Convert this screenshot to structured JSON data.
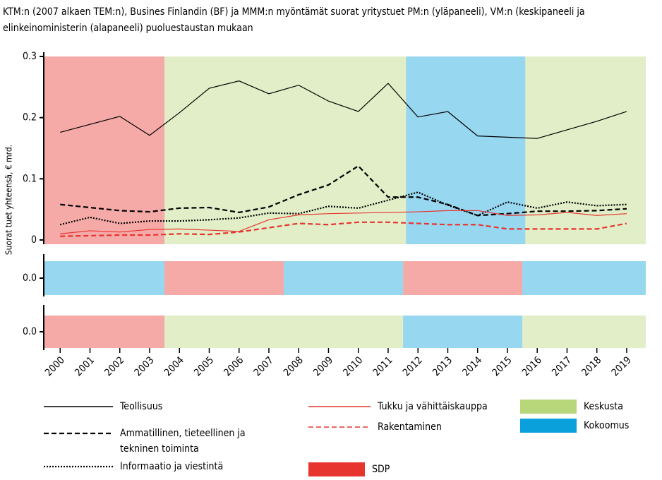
{
  "chart_data": {
    "type": "line",
    "title": "KTM:n (2007 alkaen TEM:n), Busines Finlandin (BF) ja MMM:n myöntämät suorat yritystuet PM:n (yläpaneeli), VM:n (keskipaneeli ja elinkeinoministerin (alapaneeli) puoluestaustan mukaan",
    "y_label": "Suorat tuet yhteensä, € mrd.",
    "x": [
      2000,
      2001,
      2002,
      2003,
      2004,
      2005,
      2006,
      2007,
      2008,
      2009,
      2010,
      2011,
      2012,
      2013,
      2014,
      2015,
      2016,
      2017,
      2018,
      2019
    ],
    "xlim": [
      1999.45,
      2019.64
    ],
    "ylim": [
      -0.007,
      0.3
    ],
    "yticks": [
      0,
      0.1,
      0.2,
      0.3
    ],
    "series": [
      {
        "name": "Teollisuus",
        "color": "#000000",
        "dash": "solid",
        "values": [
          0.176,
          0.189,
          0.202,
          0.171,
          0.208,
          0.248,
          0.26,
          0.239,
          0.253,
          0.227,
          0.21,
          0.256,
          0.201,
          0.21,
          0.17,
          0.168,
          0.166,
          0.18,
          0.194,
          0.21
        ]
      },
      {
        "name": "Ammatillinen, tieteellinen ja tekninen toiminta",
        "color": "#000000",
        "dash": "dashed",
        "values": [
          0.058,
          0.053,
          0.048,
          0.046,
          0.052,
          0.053,
          0.045,
          0.054,
          0.074,
          0.09,
          0.121,
          0.07,
          0.07,
          0.058,
          0.04,
          0.043,
          0.047,
          0.047,
          0.048,
          0.051
        ]
      },
      {
        "name": "Informaatio ja viestintä",
        "color": "#000000",
        "dash": "dotted",
        "values": [
          0.025,
          0.037,
          0.027,
          0.031,
          0.031,
          0.033,
          0.036,
          0.044,
          0.043,
          0.055,
          0.052,
          0.065,
          0.078,
          0.057,
          0.04,
          0.062,
          0.052,
          0.062,
          0.056,
          0.058
        ]
      },
      {
        "name": "Tukku ja vähittäiskauppa",
        "color": "#e8342f",
        "dash": "solid",
        "values": [
          0.01,
          0.015,
          0.013,
          0.017,
          0.018,
          0.016,
          0.014,
          0.033,
          0.041,
          0.043,
          0.044,
          0.045,
          0.046,
          0.048,
          0.048,
          0.04,
          0.041,
          0.045,
          0.04,
          0.043
        ]
      },
      {
        "name": "Rakentaminen",
        "color": "#e8342f",
        "dash": "dashed",
        "values": [
          0.006,
          0.007,
          0.008,
          0.008,
          0.01,
          0.009,
          0.013,
          0.02,
          0.027,
          0.025,
          0.029,
          0.029,
          0.027,
          0.025,
          0.025,
          0.018,
          0.018,
          0.018,
          0.018,
          0.027
        ]
      }
    ],
    "parties": [
      {
        "name": "Keskusta",
        "color": "#b8d77a"
      },
      {
        "name": "Kokoomus",
        "color": "#0aa0dc"
      },
      {
        "name": "SDP",
        "color": "#e8342f"
      }
    ],
    "periods": [
      {
        "party": "SDP",
        "start": 1999.45,
        "end": 2003.5
      },
      {
        "party": "Keskusta",
        "start": 2003.5,
        "end": 2011.6
      },
      {
        "party": "Kokoomus",
        "start": 2011.6,
        "end": 2015.6
      },
      {
        "party": "Keskusta",
        "start": 2015.6,
        "end": 2019.64
      }
    ],
    "panels": [
      {
        "ylim": [
          -1,
          1
        ],
        "yticks": [
          {
            "value": 0,
            "label": "0.0"
          }
        ],
        "periods": [
          {
            "party": "Kokoomus",
            "start": 1999.45,
            "end": 2003.5
          },
          {
            "party": "SDP",
            "start": 2003.5,
            "end": 2007.5
          },
          {
            "party": "Kokoomus",
            "start": 2007.5,
            "end": 2011.5
          },
          {
            "party": "SDP",
            "start": 2011.5,
            "end": 2015.5
          },
          {
            "party": "Kokoomus",
            "start": 2015.5,
            "end": 2019.64
          }
        ]
      },
      {
        "ylim": [
          -1,
          1
        ],
        "yticks": [
          {
            "value": 0,
            "label": "0.0"
          }
        ],
        "periods": [
          {
            "party": "SDP",
            "start": 1999.45,
            "end": 2003.5
          },
          {
            "party": "Keskusta",
            "start": 2003.5,
            "end": 2011.5
          },
          {
            "party": "Kokoomus",
            "start": 2011.5,
            "end": 2015.5
          },
          {
            "party": "Keskusta",
            "start": 2015.5,
            "end": 2019.64
          }
        ]
      }
    ]
  }
}
